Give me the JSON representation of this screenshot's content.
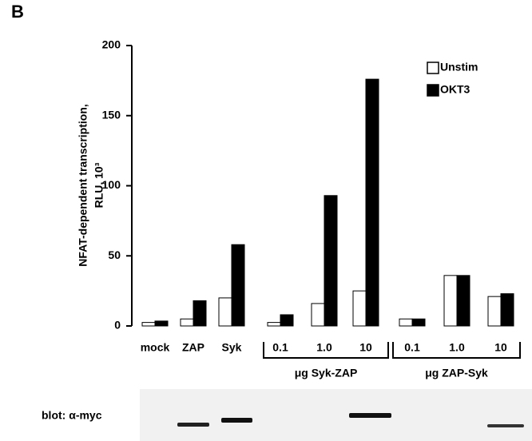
{
  "panel_label": "B",
  "blot_label": "blot: α-myc",
  "chart_data": {
    "type": "bar",
    "ylabel": [
      "NFAT-dependent transcription,",
      "RLU, 10³"
    ],
    "categories": [
      "mock",
      "ZAP",
      "Syk",
      "0.1",
      "1.0",
      "10",
      "0.1",
      "1.0",
      "10"
    ],
    "groups": [
      "μg Syk-ZAP",
      "μg ZAP-Syk"
    ],
    "series": [
      {
        "name": "Unstim",
        "color": "#ffffff",
        "values": [
          2.5,
          5,
          20,
          2.5,
          16,
          25,
          5,
          36,
          21
        ]
      },
      {
        "name": "OKT3",
        "color": "#000000",
        "values": [
          3.5,
          18,
          58,
          8,
          93,
          176,
          5,
          36,
          23
        ]
      }
    ],
    "ylim": [
      0,
      200
    ],
    "yticks": [
      0,
      50,
      100,
      150,
      200
    ]
  }
}
